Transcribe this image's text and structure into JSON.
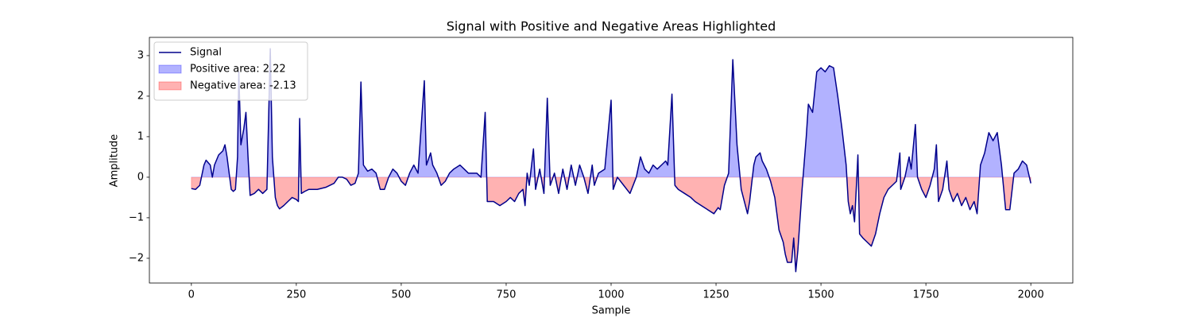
{
  "chart_data": {
    "type": "line",
    "title": "Signal with Positive and Negative Areas Highlighted",
    "xlabel": "Sample",
    "ylabel": "Amplitude",
    "x": [
      0,
      10,
      20,
      30,
      35,
      45,
      50,
      55,
      65,
      75,
      80,
      85,
      90,
      95,
      100,
      105,
      110,
      113,
      118,
      125,
      130,
      135,
      140,
      150,
      160,
      170,
      180,
      188,
      193,
      200,
      205,
      210,
      220,
      230,
      240,
      250,
      255,
      258,
      262,
      270,
      280,
      300,
      320,
      340,
      350,
      360,
      370,
      380,
      390,
      398,
      404,
      410,
      420,
      430,
      440,
      450,
      460,
      470,
      480,
      490,
      500,
      510,
      520,
      530,
      540,
      555,
      560,
      570,
      575,
      585,
      595,
      605,
      615,
      625,
      640,
      650,
      660,
      680,
      690,
      700,
      705,
      720,
      735,
      750,
      760,
      770,
      780,
      790,
      795,
      800,
      805,
      815,
      820,
      830,
      840,
      848,
      855,
      865,
      875,
      885,
      895,
      905,
      915,
      925,
      935,
      945,
      955,
      960,
      970,
      985,
      1000,
      1005,
      1015,
      1030,
      1045,
      1060,
      1070,
      1080,
      1090,
      1100,
      1110,
      1120,
      1130,
      1135,
      1145,
      1152,
      1160,
      1175,
      1190,
      1200,
      1215,
      1230,
      1245,
      1255,
      1260,
      1270,
      1280,
      1290,
      1300,
      1310,
      1320,
      1325,
      1330,
      1340,
      1345,
      1355,
      1360,
      1370,
      1380,
      1390,
      1400,
      1410,
      1415,
      1420,
      1430,
      1435,
      1440,
      1445,
      1455,
      1465,
      1470,
      1480,
      1490,
      1500,
      1510,
      1520,
      1530,
      1540,
      1550,
      1560,
      1565,
      1570,
      1575,
      1580,
      1585,
      1588,
      1592,
      1600,
      1610,
      1620,
      1630,
      1640,
      1650,
      1660,
      1670,
      1680,
      1688,
      1690,
      1700,
      1710,
      1715,
      1725,
      1730,
      1740,
      1750,
      1760,
      1770,
      1775,
      1780,
      1790,
      1800,
      1805,
      1815,
      1825,
      1835,
      1845,
      1855,
      1865,
      1872,
      1880,
      1890,
      1900,
      1910,
      1920,
      1930,
      1940,
      1950,
      1960,
      1970,
      1980,
      1990,
      2000
    ],
    "series": [
      {
        "name": "Signal",
        "color": "#00008b",
        "values": [
          -0.28,
          -0.3,
          -0.2,
          0.3,
          0.42,
          0.3,
          0.0,
          0.3,
          0.55,
          0.65,
          0.8,
          0.5,
          0.1,
          -0.3,
          -0.35,
          -0.3,
          0.5,
          2.6,
          0.8,
          1.2,
          1.6,
          0.5,
          -0.45,
          -0.4,
          -0.3,
          -0.4,
          -0.3,
          3.17,
          0.5,
          -0.5,
          -0.7,
          -0.78,
          -0.7,
          -0.6,
          -0.5,
          -0.55,
          -0.6,
          1.45,
          -0.4,
          -0.35,
          -0.3,
          -0.3,
          -0.25,
          -0.15,
          0.0,
          0.0,
          -0.05,
          -0.2,
          -0.15,
          0.1,
          2.35,
          0.3,
          0.15,
          0.2,
          0.1,
          -0.3,
          -0.3,
          0.0,
          0.2,
          0.1,
          -0.1,
          -0.2,
          0.1,
          0.3,
          0.1,
          2.38,
          0.3,
          0.6,
          0.3,
          0.1,
          -0.2,
          -0.1,
          0.1,
          0.2,
          0.3,
          0.2,
          0.1,
          0.1,
          0.0,
          1.6,
          -0.6,
          -0.6,
          -0.7,
          -0.6,
          -0.5,
          -0.6,
          -0.4,
          -0.3,
          -0.7,
          0.1,
          -0.2,
          0.7,
          -0.3,
          0.2,
          -0.4,
          1.95,
          -0.2,
          0.1,
          -0.4,
          0.2,
          -0.3,
          0.3,
          -0.2,
          0.3,
          0.0,
          -0.4,
          0.3,
          -0.2,
          0.1,
          0.2,
          1.9,
          -0.3,
          0.0,
          -0.2,
          -0.4,
          0.0,
          0.5,
          0.2,
          0.1,
          0.3,
          0.2,
          0.3,
          0.4,
          0.3,
          2.05,
          -0.2,
          -0.3,
          -0.4,
          -0.5,
          -0.6,
          -0.7,
          -0.8,
          -0.9,
          -0.75,
          -0.8,
          -0.2,
          0.1,
          2.9,
          0.8,
          -0.3,
          -0.7,
          -0.9,
          -0.6,
          0.3,
          0.5,
          0.6,
          0.4,
          0.2,
          -0.1,
          -0.5,
          -1.3,
          -1.6,
          -1.9,
          -2.1,
          -2.1,
          -1.5,
          -2.33,
          -1.8,
          -0.3,
          1.0,
          1.8,
          1.6,
          2.6,
          2.7,
          2.6,
          2.75,
          2.7,
          2.0,
          1.2,
          0.3,
          -0.6,
          -0.9,
          -0.7,
          -1.1,
          -0.1,
          0.55,
          -1.4,
          -1.5,
          -1.6,
          -1.7,
          -1.4,
          -0.9,
          -0.5,
          -0.3,
          -0.2,
          -0.1,
          0.6,
          -0.3,
          0.0,
          0.5,
          0.2,
          1.3,
          0.0,
          -0.3,
          -0.5,
          -0.2,
          0.2,
          0.8,
          -0.6,
          -0.3,
          0.4,
          -0.3,
          -0.6,
          -0.4,
          -0.7,
          -0.5,
          -0.8,
          -0.6,
          -0.9,
          0.3,
          0.6,
          1.1,
          0.9,
          1.1,
          0.3,
          -0.8,
          -0.8,
          0.1,
          0.2,
          0.4,
          0.3,
          -0.15
        ]
      }
    ],
    "fills": [
      {
        "name": "Positive area: 2.22",
        "color": "#0000ff"
      },
      {
        "name": "Negative area: -2.13",
        "color": "#ff0000"
      }
    ],
    "xlim": [
      -100,
      2100
    ],
    "ylim": [
      -2.61,
      3.45
    ],
    "xticks": [
      0,
      250,
      500,
      750,
      1000,
      1250,
      1500,
      1750,
      2000
    ],
    "yticks": [
      {
        "value": -2,
        "label": "−2"
      },
      {
        "value": -1,
        "label": "−1"
      },
      0,
      1,
      2,
      3
    ],
    "legend": "upper left"
  }
}
